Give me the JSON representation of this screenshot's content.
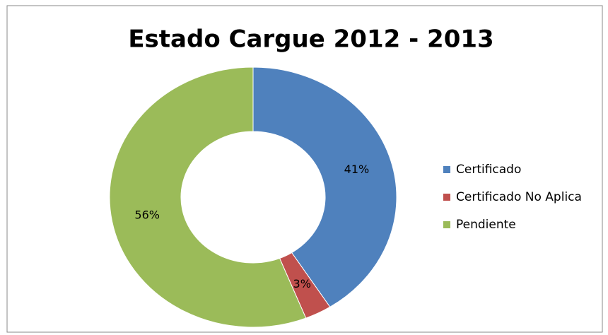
{
  "chart_data": {
    "type": "donut",
    "title": "Estado Cargue 2012 - 2013",
    "categories": [
      "Certificado",
      "Certificado No Aplica",
      "Pendiente"
    ],
    "values": [
      41,
      3,
      56
    ],
    "value_labels": [
      "41%",
      "3%",
      "56%"
    ],
    "colors": [
      "#4f81bd",
      "#c0504d",
      "#9bbb59"
    ],
    "legend": "right"
  }
}
